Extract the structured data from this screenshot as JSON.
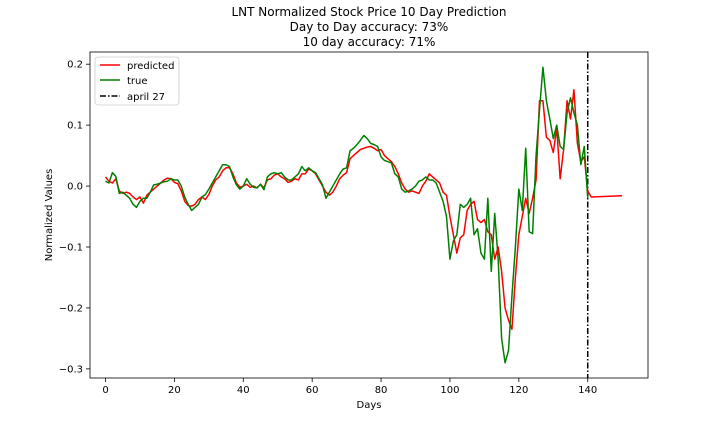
{
  "chart_data": {
    "type": "line",
    "title": "LNT Normalized Stock Price 10 Day Prediction",
    "subtitle_lines": [
      "Day to Day accuracy: 73%",
      "10 day accuracy: 71%"
    ],
    "xlabel": "Days",
    "ylabel": "Normalized Values",
    "xlim": [
      -4.5,
      157.5
    ],
    "ylim": [
      -0.315,
      0.22
    ],
    "xticks": [
      0,
      20,
      40,
      60,
      80,
      100,
      120,
      140
    ],
    "yticks": [
      -0.3,
      -0.2,
      -0.1,
      0.0,
      0.1,
      0.2
    ],
    "ytick_labels": [
      "−0.3",
      "−0.2",
      "−0.1",
      "0.0",
      "0.1",
      "0.2"
    ],
    "grid": false,
    "legend_position": "top-left",
    "vline": {
      "x": 140,
      "label": "april 27",
      "color": "#000000",
      "style": "dashdot"
    },
    "series": [
      {
        "name": "predicted",
        "color": "#ff0000",
        "points": [
          [
            0,
            0.015
          ],
          [
            1,
            0.008
          ],
          [
            2,
            0.005
          ],
          [
            3,
            0.012
          ],
          [
            4,
            -0.008
          ],
          [
            5,
            -0.012
          ],
          [
            6,
            -0.01
          ],
          [
            7,
            -0.012
          ],
          [
            8,
            -0.018
          ],
          [
            9,
            -0.022
          ],
          [
            10,
            -0.018
          ],
          [
            11,
            -0.028
          ],
          [
            12,
            -0.015
          ],
          [
            13,
            -0.01
          ],
          [
            14,
            -0.005
          ],
          [
            15,
            0.0
          ],
          [
            16,
            0.005
          ],
          [
            17,
            0.01
          ],
          [
            18,
            0.013
          ],
          [
            19,
            0.012
          ],
          [
            20,
            0.006
          ],
          [
            21,
            0.004
          ],
          [
            22,
            -0.008
          ],
          [
            23,
            -0.025
          ],
          [
            24,
            -0.032
          ],
          [
            25,
            -0.033
          ],
          [
            26,
            -0.03
          ],
          [
            27,
            -0.022
          ],
          [
            28,
            -0.018
          ],
          [
            29,
            -0.022
          ],
          [
            30,
            -0.014
          ],
          [
            31,
            0.0
          ],
          [
            32,
            0.01
          ],
          [
            33,
            0.015
          ],
          [
            34,
            0.025
          ],
          [
            35,
            0.03
          ],
          [
            36,
            0.03
          ],
          [
            37,
            0.02
          ],
          [
            38,
            0.005
          ],
          [
            39,
            -0.002
          ],
          [
            40,
            0.0
          ],
          [
            41,
            0.003
          ],
          [
            42,
            -0.002
          ],
          [
            43,
            0.0
          ],
          [
            44,
            -0.003
          ],
          [
            45,
            0.003
          ],
          [
            46,
            -0.003
          ],
          [
            47,
            0.01
          ],
          [
            48,
            0.012
          ],
          [
            49,
            0.018
          ],
          [
            50,
            0.02
          ],
          [
            51,
            0.015
          ],
          [
            52,
            0.012
          ],
          [
            53,
            0.006
          ],
          [
            54,
            0.008
          ],
          [
            55,
            0.012
          ],
          [
            56,
            0.01
          ],
          [
            57,
            0.02
          ],
          [
            58,
            0.02
          ],
          [
            59,
            0.028
          ],
          [
            60,
            0.025
          ],
          [
            61,
            0.02
          ],
          [
            62,
            0.01
          ],
          [
            63,
            0.0
          ],
          [
            64,
            -0.01
          ],
          [
            65,
            -0.015
          ],
          [
            66,
            -0.01
          ],
          [
            67,
            0.0
          ],
          [
            68,
            0.012
          ],
          [
            69,
            0.018
          ],
          [
            70,
            0.022
          ],
          [
            71,
            0.045
          ],
          [
            72,
            0.05
          ],
          [
            73,
            0.055
          ],
          [
            74,
            0.06
          ],
          [
            75,
            0.062
          ],
          [
            76,
            0.064
          ],
          [
            77,
            0.065
          ],
          [
            78,
            0.062
          ],
          [
            79,
            0.058
          ],
          [
            80,
            0.06
          ],
          [
            81,
            0.05
          ],
          [
            82,
            0.045
          ],
          [
            83,
            0.04
          ],
          [
            84,
            0.032
          ],
          [
            85,
            0.02
          ],
          [
            86,
            0.005
          ],
          [
            87,
            -0.005
          ],
          [
            88,
            -0.01
          ],
          [
            89,
            -0.008
          ],
          [
            90,
            -0.01
          ],
          [
            91,
            -0.012
          ],
          [
            92,
            0.0
          ],
          [
            93,
            0.008
          ],
          [
            94,
            0.02
          ],
          [
            95,
            0.015
          ],
          [
            96,
            0.01
          ],
          [
            97,
            0.005
          ],
          [
            98,
            -0.01
          ],
          [
            99,
            -0.015
          ],
          [
            100,
            -0.05
          ],
          [
            101,
            -0.08
          ],
          [
            102,
            -0.11
          ],
          [
            103,
            -0.085
          ],
          [
            104,
            -0.08
          ],
          [
            105,
            -0.04
          ],
          [
            106,
            -0.03
          ],
          [
            107,
            -0.025
          ],
          [
            108,
            -0.055
          ],
          [
            109,
            -0.06
          ],
          [
            110,
            -0.055
          ],
          [
            111,
            -0.075
          ],
          [
            112,
            -0.08
          ],
          [
            113,
            -0.12
          ],
          [
            114,
            -0.1
          ],
          [
            115,
            -0.14
          ],
          [
            116,
            -0.2
          ],
          [
            117,
            -0.22
          ],
          [
            118,
            -0.235
          ],
          [
            119,
            -0.15
          ],
          [
            120,
            -0.08
          ],
          [
            121,
            -0.05
          ],
          [
            122,
            -0.02
          ],
          [
            123,
            -0.045
          ],
          [
            124,
            -0.02
          ],
          [
            125,
            0.01
          ],
          [
            126,
            0.14
          ],
          [
            127,
            0.14
          ],
          [
            128,
            0.08
          ],
          [
            129,
            0.075
          ],
          [
            130,
            0.055
          ],
          [
            131,
            0.095
          ],
          [
            132,
            0.012
          ],
          [
            133,
            0.06
          ],
          [
            134,
            0.14
          ],
          [
            135,
            0.11
          ],
          [
            136,
            0.158
          ],
          [
            137,
            0.07
          ],
          [
            138,
            0.04
          ],
          [
            139,
            0.048
          ],
          [
            140,
            -0.008
          ],
          [
            141,
            -0.018
          ],
          [
            150,
            -0.016
          ]
        ]
      },
      {
        "name": "true",
        "color": "#008000",
        "points": [
          [
            0,
            0.008
          ],
          [
            1,
            0.005
          ],
          [
            2,
            0.022
          ],
          [
            3,
            0.016
          ],
          [
            4,
            -0.012
          ],
          [
            5,
            -0.01
          ],
          [
            6,
            -0.015
          ],
          [
            7,
            -0.02
          ],
          [
            8,
            -0.03
          ],
          [
            9,
            -0.035
          ],
          [
            10,
            -0.025
          ],
          [
            11,
            -0.02
          ],
          [
            12,
            -0.02
          ],
          [
            13,
            -0.01
          ],
          [
            14,
            0.002
          ],
          [
            15,
            0.003
          ],
          [
            16,
            0.005
          ],
          [
            17,
            0.007
          ],
          [
            18,
            0.008
          ],
          [
            19,
            0.012
          ],
          [
            20,
            0.01
          ],
          [
            21,
            0.01
          ],
          [
            22,
            0.0
          ],
          [
            23,
            -0.018
          ],
          [
            24,
            -0.03
          ],
          [
            25,
            -0.04
          ],
          [
            26,
            -0.035
          ],
          [
            27,
            -0.03
          ],
          [
            28,
            -0.018
          ],
          [
            29,
            -0.014
          ],
          [
            30,
            -0.005
          ],
          [
            31,
            0.005
          ],
          [
            32,
            0.015
          ],
          [
            33,
            0.025
          ],
          [
            34,
            0.035
          ],
          [
            35,
            0.035
          ],
          [
            36,
            0.032
          ],
          [
            37,
            0.015
          ],
          [
            38,
            0.002
          ],
          [
            39,
            -0.005
          ],
          [
            40,
            0.0
          ],
          [
            41,
            0.012
          ],
          [
            42,
            0.003
          ],
          [
            43,
            -0.002
          ],
          [
            44,
            -0.003
          ],
          [
            45,
            0.003
          ],
          [
            46,
            -0.006
          ],
          [
            47,
            0.015
          ],
          [
            48,
            0.02
          ],
          [
            49,
            0.022
          ],
          [
            50,
            0.02
          ],
          [
            51,
            0.022
          ],
          [
            52,
            0.015
          ],
          [
            53,
            0.01
          ],
          [
            54,
            0.01
          ],
          [
            55,
            0.015
          ],
          [
            56,
            0.02
          ],
          [
            57,
            0.032
          ],
          [
            58,
            0.025
          ],
          [
            59,
            0.03
          ],
          [
            60,
            0.025
          ],
          [
            61,
            0.022
          ],
          [
            62,
            0.012
          ],
          [
            63,
            0.002
          ],
          [
            64,
            -0.02
          ],
          [
            65,
            -0.01
          ],
          [
            66,
            0.0
          ],
          [
            67,
            0.01
          ],
          [
            68,
            0.02
          ],
          [
            69,
            0.028
          ],
          [
            70,
            0.03
          ],
          [
            71,
            0.058
          ],
          [
            72,
            0.062
          ],
          [
            73,
            0.068
          ],
          [
            74,
            0.075
          ],
          [
            75,
            0.083
          ],
          [
            76,
            0.078
          ],
          [
            77,
            0.07
          ],
          [
            78,
            0.068
          ],
          [
            79,
            0.065
          ],
          [
            80,
            0.048
          ],
          [
            81,
            0.042
          ],
          [
            82,
            0.04
          ],
          [
            83,
            0.038
          ],
          [
            84,
            0.02
          ],
          [
            85,
            0.015
          ],
          [
            86,
            -0.005
          ],
          [
            87,
            -0.01
          ],
          [
            88,
            -0.008
          ],
          [
            89,
            -0.005
          ],
          [
            90,
            0.0
          ],
          [
            91,
            0.008
          ],
          [
            92,
            0.01
          ],
          [
            93,
            0.015
          ],
          [
            94,
            0.01
          ],
          [
            95,
            0.01
          ],
          [
            96,
            0.005
          ],
          [
            97,
            -0.01
          ],
          [
            98,
            -0.025
          ],
          [
            99,
            -0.05
          ],
          [
            100,
            -0.12
          ],
          [
            101,
            -0.09
          ],
          [
            102,
            -0.08
          ],
          [
            103,
            -0.03
          ],
          [
            104,
            -0.035
          ],
          [
            105,
            -0.03
          ],
          [
            106,
            -0.02
          ],
          [
            107,
            -0.08
          ],
          [
            108,
            -0.07
          ],
          [
            109,
            -0.11
          ],
          [
            110,
            -0.12
          ],
          [
            111,
            -0.02
          ],
          [
            112,
            -0.14
          ],
          [
            113,
            -0.045
          ],
          [
            114,
            -0.12
          ],
          [
            115,
            -0.25
          ],
          [
            116,
            -0.29
          ],
          [
            117,
            -0.27
          ],
          [
            118,
            -0.18
          ],
          [
            119,
            -0.1
          ],
          [
            120,
            -0.005
          ],
          [
            121,
            -0.04
          ],
          [
            122,
            0.062
          ],
          [
            123,
            -0.075
          ],
          [
            124,
            -0.078
          ],
          [
            125,
            0.05
          ],
          [
            126,
            0.125
          ],
          [
            127,
            0.195
          ],
          [
            128,
            0.14
          ],
          [
            129,
            0.11
          ],
          [
            130,
            0.078
          ],
          [
            131,
            0.1
          ],
          [
            132,
            0.065
          ],
          [
            133,
            0.06
          ],
          [
            134,
            0.12
          ],
          [
            135,
            0.145
          ],
          [
            136,
            0.12
          ],
          [
            137,
            0.1
          ],
          [
            138,
            0.035
          ],
          [
            139,
            0.065
          ],
          [
            140,
            -0.02
          ]
        ]
      }
    ]
  }
}
